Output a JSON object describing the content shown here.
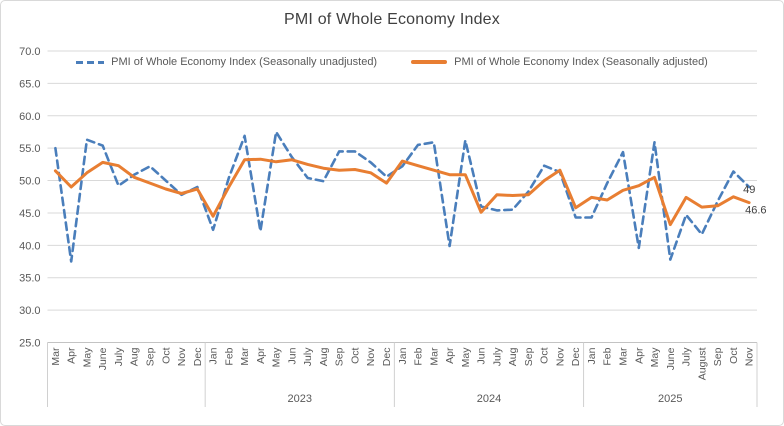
{
  "title": "PMI of Whole Economy Index",
  "legend": {
    "unadjusted_label": "PMI of Whole Economy Index (Seasonally unadjusted)",
    "adjusted_label": "PMI of Whole Economy Index (Seasonally adjusted)"
  },
  "colors": {
    "unadjusted": "#4a7ebb",
    "adjusted": "#e87e32",
    "grid": "#d9d9d9",
    "axis": "#c3c3c3",
    "separator": "#d0d0d0",
    "tick_text": "#595959",
    "title_text": "#404040",
    "data_label_text": "#404040",
    "border": "#d9d9d9"
  },
  "chart_data": {
    "type": "line",
    "title": "PMI of Whole Economy Index",
    "ylim": [
      25,
      70
    ],
    "ytick_labels": [
      "25.0",
      "30.0",
      "35.0",
      "40.0",
      "45.0",
      "50.0",
      "55.0",
      "60.0",
      "65.0",
      "70.0"
    ],
    "grid": true,
    "legend_position": "top-center",
    "x_groups": [
      {
        "year_label": "",
        "months": [
          "Mar",
          "Apr",
          "May",
          "June",
          "July",
          "Aug",
          "Sep",
          "Oct",
          "Nov",
          "Dec"
        ]
      },
      {
        "year_label": "2023",
        "months": [
          "Jan",
          "Feb",
          "Mar",
          "Apr",
          "May",
          "Jun",
          "July",
          "Aug",
          "Sep",
          "Oct",
          "Nov",
          "Dec"
        ]
      },
      {
        "year_label": "2024",
        "months": [
          "Jan",
          "Feb",
          "Mar",
          "Apr",
          "May",
          "Jun",
          "July",
          "Aug",
          "Sep",
          "Oct",
          "Nov",
          "Dec"
        ]
      },
      {
        "year_label": "2025",
        "months": [
          "Jan",
          "Feb",
          "Mar",
          "Apr",
          "May",
          "June",
          "July",
          "August",
          "Sep",
          "Oct",
          "Nov"
        ]
      }
    ],
    "series": [
      {
        "name": "PMI of Whole Economy Index (Seasonally unadjusted)",
        "style": "dashed",
        "end_label": "49",
        "values": [
          55.0,
          37.5,
          56.3,
          55.4,
          49.2,
          50.9,
          52.2,
          50.0,
          47.8,
          49.0,
          42.4,
          50.4,
          56.9,
          42.2,
          57.5,
          53.6,
          50.4,
          49.9,
          54.5,
          54.5,
          52.8,
          50.6,
          52.2,
          55.5,
          55.9,
          39.9,
          56.2,
          46.0,
          45.4,
          45.5,
          48.3,
          52.3,
          51.3,
          44.3,
          44.3,
          49.6,
          54.4,
          39.6,
          55.9,
          37.8,
          44.7,
          41.7,
          46.8,
          51.4,
          49.0
        ]
      },
      {
        "name": "PMI of Whole Economy Index (Seasonally adjusted)",
        "style": "solid",
        "end_label": "46.6",
        "values": [
          51.5,
          49.0,
          51.2,
          52.8,
          52.3,
          50.5,
          49.6,
          48.7,
          48.0,
          48.7,
          44.5,
          49.0,
          53.2,
          53.3,
          52.9,
          53.2,
          52.5,
          51.9,
          51.6,
          51.7,
          51.2,
          49.6,
          53.0,
          52.3,
          51.6,
          50.9,
          50.9,
          45.1,
          47.8,
          47.7,
          47.8,
          50.0,
          51.6,
          45.8,
          47.4,
          47.0,
          48.5,
          49.2,
          50.5,
          43.2,
          47.4,
          45.9,
          46.1,
          47.5,
          46.6
        ]
      }
    ]
  }
}
